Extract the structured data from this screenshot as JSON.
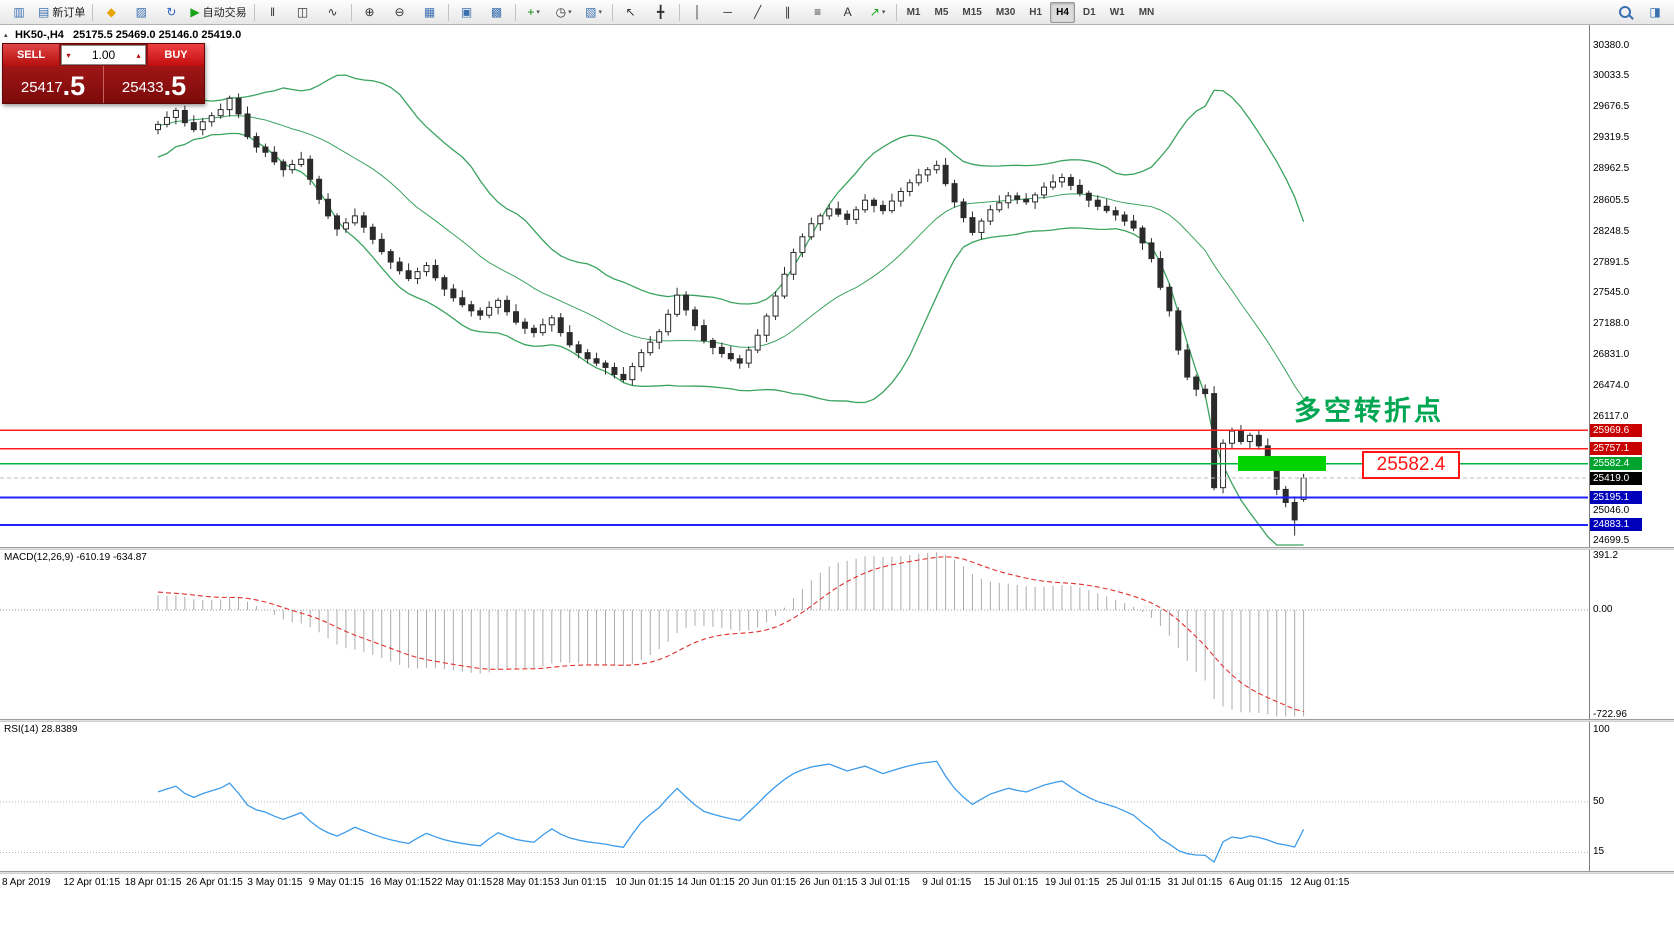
{
  "toolbar": {
    "groups": [
      {
        "items": [
          {
            "name": "symbol-window-button",
            "glyph": "▥",
            "color": "#3a6fb0"
          },
          {
            "name": "new-order-button",
            "glyph": "▤",
            "color": "#3a6fb0",
            "label": "新订单"
          }
        ]
      },
      {
        "items": [
          {
            "name": "favorites-button",
            "glyph": "◆",
            "color": "#e8a400"
          },
          {
            "name": "market-watch-button",
            "glyph": "▨",
            "color": "#3a6fb0"
          },
          {
            "name": "refresh-button",
            "glyph": "↻",
            "color": "#2a62c8"
          },
          {
            "name": "autotrade-button",
            "glyph": "▶",
            "color": "#17a317",
            "label": "自动交易"
          }
        ]
      },
      {
        "items": [
          {
            "name": "bar-chart-button",
            "glyph": "‖",
            "color": "#333333"
          },
          {
            "name": "candlestick-chart-button",
            "glyph": "◫",
            "color": "#333333"
          },
          {
            "name": "line-chart-button",
            "glyph": "∿",
            "color": "#333333"
          }
        ]
      },
      {
        "items": [
          {
            "name": "zoom-in-button",
            "glyph": "⊕",
            "color": "#333333"
          },
          {
            "name": "zoom-out-button",
            "glyph": "⊖",
            "color": "#333333"
          },
          {
            "name": "tile-windows-button",
            "glyph": "▦",
            "color": "#3a6fb0"
          }
        ]
      },
      {
        "items": [
          {
            "name": "arrange-windows-button",
            "glyph": "▣",
            "color": "#3a6fb0"
          },
          {
            "name": "cascade-windows-button",
            "glyph": "▩",
            "color": "#3a6fb0"
          }
        ]
      },
      {
        "items": [
          {
            "name": "indicators-button",
            "glyph": "+",
            "color": "#0a8a0a",
            "dropdown": true
          },
          {
            "name": "periods-button",
            "glyph": "◷",
            "color": "#333333",
            "dropdown": true
          },
          {
            "name": "templates-button",
            "glyph": "▧",
            "color": "#3a6fb0",
            "dropdown": true
          }
        ]
      },
      {
        "items": [
          {
            "name": "cursor-button",
            "glyph": "↖",
            "color": "#333333"
          },
          {
            "name": "crosshair-button",
            "glyph": "╋",
            "color": "#333333"
          }
        ]
      },
      {
        "items": [
          {
            "name": "vertical-line-button",
            "glyph": "│",
            "color": "#333333"
          },
          {
            "name": "horizontal-line-button",
            "glyph": "─",
            "color": "#333333"
          },
          {
            "name": "trendline-button",
            "glyph": "╱",
            "color": "#333333"
          },
          {
            "name": "equidistant-channel-button",
            "glyph": "∥",
            "color": "#333333"
          },
          {
            "name": "fibonacci-button",
            "glyph": "≡",
            "color": "#333333"
          },
          {
            "name": "text-label-button",
            "glyph": "A",
            "color": "#333333"
          },
          {
            "name": "arrows-button",
            "glyph": "↗",
            "color": "#17a317",
            "dropdown": true
          }
        ]
      }
    ],
    "timeframes": [
      {
        "label": "M1"
      },
      {
        "label": "M5"
      },
      {
        "label": "M15"
      },
      {
        "label": "M30"
      },
      {
        "label": "H1"
      },
      {
        "label": "H4",
        "active": true
      },
      {
        "label": "D1"
      },
      {
        "label": "W1"
      },
      {
        "label": "MN"
      }
    ],
    "right_items": [
      {
        "name": "search-button",
        "css": "magnifier"
      },
      {
        "name": "data-window-button",
        "glyph": "◨",
        "color": "#3a6fb0"
      }
    ]
  },
  "order_panel": {
    "sell_label": "SELL",
    "buy_label": "BUY",
    "volume": "1.00",
    "sell_price_main": "25417",
    "sell_price_pips": ".5",
    "buy_price_main": "25433",
    "buy_price_pips": ".5"
  },
  "chart_header": {
    "symbol": "HK50-,H4",
    "ohlc": "25175.5 25469.0 25146.0 25419.0"
  },
  "indicators": {
    "macd_header": "MACD(12,26,9) -610.19 -634.87",
    "rsi_header": "RSI(14) 28.8389"
  },
  "annotations": {
    "turning_point_text": "多空转折点",
    "price_callout_text": "25582.4"
  },
  "icons": {
    "collapse": "▴",
    "volume_down": "▾",
    "volume_up": "▴"
  },
  "colors": {
    "band": "#3aa35f",
    "bull_body": "#ffffff",
    "bear_body": "#2b2b2b",
    "candle_outline": "#2b2b2b",
    "macd_hist": "#ababab",
    "macd_signal": "#e03030",
    "rsi_line": "#3d9be9",
    "rect_fill": "#00d300",
    "annotation_green": "#00a651",
    "callout_red": "#ff1414",
    "bid_line": "#bbbbbb"
  },
  "chart_data": {
    "type": "candlestick",
    "symbol": "HK50-",
    "timeframe": "H4",
    "view_price_range": [
      24629,
      30621
    ],
    "y_ticks": [
      {
        "label": "30380.0",
        "value": 30380.0
      },
      {
        "label": "30033.5",
        "value": 30033.5
      },
      {
        "label": "29676.5",
        "value": 29676.5
      },
      {
        "label": "29319.5",
        "value": 29319.5
      },
      {
        "label": "28962.5",
        "value": 28962.5
      },
      {
        "label": "28605.5",
        "value": 28605.5
      },
      {
        "label": "28248.5",
        "value": 28248.5
      },
      {
        "label": "27891.5",
        "value": 27891.5
      },
      {
        "label": "27545.0",
        "value": 27545.0
      },
      {
        "label": "27188.0",
        "value": 27188.0
      },
      {
        "label": "26831.0",
        "value": 26831.0
      },
      {
        "label": "26474.0",
        "value": 26474.0
      },
      {
        "label": "26117.0",
        "value": 26117.0
      },
      {
        "label": "25046.0",
        "value": 25046.0
      },
      {
        "label": "24699.5",
        "value": 24699.5
      }
    ],
    "x_tick_labels": [
      "8 Apr 2019",
      "12 Apr 01:15",
      "18 Apr 01:15",
      "26 Apr 01:15",
      "3 May 01:15",
      "9 May 01:15",
      "16 May 01:15",
      "22 May 01:15",
      "28 May 01:15",
      "3 Jun 01:15",
      "10 Jun 01:15",
      "14 Jun 01:15",
      "20 Jun 01:15",
      "26 Jun 01:15",
      "3 Jul 01:15",
      "9 Jul 01:15",
      "15 Jul 01:15",
      "19 Jul 01:15",
      "25 Jul 01:15",
      "31 Jul 01:15",
      "6 Aug 01:15",
      "12 Aug 01:15"
    ],
    "prehistory_closes": [
      29050,
      29180,
      29080,
      29300,
      29180,
      29380,
      29320,
      29520,
      29400,
      29600,
      29480,
      29660,
      29560,
      29720,
      29600,
      29760,
      29650,
      29560,
      29470,
      29420
    ],
    "candles": [
      [
        29420,
        29520,
        29365,
        29480
      ],
      [
        29480,
        29630,
        29445,
        29560
      ],
      [
        29560,
        29670,
        29480,
        29640
      ],
      [
        29640,
        29695,
        29455,
        29500
      ],
      [
        29500,
        29585,
        29390,
        29420
      ],
      [
        29420,
        29555,
        29355,
        29510
      ],
      [
        29510,
        29620,
        29455,
        29580
      ],
      [
        29580,
        29720,
        29545,
        29650
      ],
      [
        29650,
        29810,
        29570,
        29780
      ],
      [
        29780,
        29835,
        29555,
        29600
      ],
      [
        29600,
        29685,
        29310,
        29340
      ],
      [
        29340,
        29385,
        29155,
        29220
      ],
      [
        29220,
        29260,
        29105,
        29160
      ],
      [
        29160,
        29230,
        29015,
        29050
      ],
      [
        29050,
        29080,
        28880,
        28960
      ],
      [
        28960,
        29075,
        28915,
        29020
      ],
      [
        29020,
        29165,
        28990,
        29080
      ],
      [
        29080,
        29125,
        28785,
        28850
      ],
      [
        28850,
        28890,
        28565,
        28620
      ],
      [
        28620,
        28690,
        28395,
        28430
      ],
      [
        28430,
        28460,
        28200,
        28280
      ],
      [
        28280,
        28405,
        28235,
        28350
      ],
      [
        28350,
        28515,
        28320,
        28430
      ],
      [
        28430,
        28475,
        28235,
        28300
      ],
      [
        28300,
        28340,
        28105,
        28160
      ],
      [
        28160,
        28230,
        27985,
        28020
      ],
      [
        28020,
        28050,
        27820,
        27900
      ],
      [
        27900,
        27955,
        27755,
        27800
      ],
      [
        27800,
        27885,
        27680,
        27710
      ],
      [
        27710,
        27835,
        27645,
        27790
      ],
      [
        27790,
        27900,
        27735,
        27860
      ],
      [
        27860,
        27930,
        27685,
        27720
      ],
      [
        27720,
        27750,
        27510,
        27590
      ],
      [
        27590,
        27645,
        27445,
        27490
      ],
      [
        27490,
        27575,
        27380,
        27410
      ],
      [
        27410,
        27455,
        27275,
        27340
      ],
      [
        27340,
        27380,
        27235,
        27290
      ],
      [
        27290,
        27450,
        27255,
        27380
      ],
      [
        27380,
        27490,
        27300,
        27460
      ],
      [
        27460,
        27515,
        27285,
        27330
      ],
      [
        27330,
        27415,
        27180,
        27210
      ],
      [
        27210,
        27255,
        27075,
        27140
      ],
      [
        27140,
        27180,
        27035,
        27090
      ],
      [
        27090,
        27250,
        27055,
        27180
      ],
      [
        27180,
        27290,
        27100,
        27260
      ],
      [
        27260,
        27315,
        27045,
        27090
      ],
      [
        27090,
        27175,
        26920,
        26950
      ],
      [
        26950,
        26995,
        26795,
        26860
      ],
      [
        26860,
        26900,
        26735,
        26790
      ],
      [
        26790,
        26860,
        26705,
        26740
      ],
      [
        26740,
        26770,
        26610,
        26690
      ],
      [
        26690,
        26745,
        26565,
        26610
      ],
      [
        26610,
        26695,
        26520,
        26550
      ],
      [
        26550,
        26745,
        26485,
        26700
      ],
      [
        26700,
        26900,
        26645,
        26860
      ],
      [
        26860,
        27050,
        26825,
        26980
      ],
      [
        26980,
        27130,
        26900,
        27100
      ],
      [
        27100,
        27355,
        27055,
        27300
      ],
      [
        27300,
        27605,
        27270,
        27520
      ],
      [
        27520,
        27565,
        27285,
        27350
      ],
      [
        27350,
        27390,
        27115,
        27170
      ],
      [
        27170,
        27240,
        26965,
        27000
      ],
      [
        27000,
        27030,
        26840,
        26920
      ],
      [
        26920,
        26975,
        26805,
        26850
      ],
      [
        26850,
        26935,
        26760,
        26790
      ],
      [
        26790,
        26835,
        26675,
        26740
      ],
      [
        26740,
        26930,
        26685,
        26890
      ],
      [
        26890,
        27130,
        26855,
        27060
      ],
      [
        27060,
        27310,
        26980,
        27280
      ],
      [
        27280,
        27565,
        27235,
        27510
      ],
      [
        27510,
        27845,
        27480,
        27760
      ],
      [
        27760,
        28055,
        27695,
        28010
      ],
      [
        28010,
        28230,
        27955,
        28190
      ],
      [
        28190,
        28410,
        28155,
        28340
      ],
      [
        28340,
        28460,
        28260,
        28430
      ],
      [
        28430,
        28565,
        28385,
        28510
      ],
      [
        28510,
        28595,
        28420,
        28450
      ],
      [
        28450,
        28495,
        28325,
        28390
      ],
      [
        28390,
        28540,
        28335,
        28500
      ],
      [
        28500,
        28680,
        28465,
        28610
      ],
      [
        28610,
        28640,
        28470,
        28550
      ],
      [
        28550,
        28605,
        28445,
        28490
      ],
      [
        28490,
        28685,
        28460,
        28600
      ],
      [
        28600,
        28755,
        28535,
        28710
      ],
      [
        28710,
        28850,
        28655,
        28810
      ],
      [
        28810,
        28970,
        28775,
        28900
      ],
      [
        28900,
        28990,
        28820,
        28960
      ],
      [
        28960,
        29065,
        28915,
        29010
      ],
      [
        29010,
        29095,
        28770,
        28800
      ],
      [
        28800,
        28845,
        28525,
        28590
      ],
      [
        28590,
        28630,
        28355,
        28410
      ],
      [
        28410,
        28480,
        28205,
        28240
      ],
      [
        28240,
        28400,
        28160,
        28370
      ],
      [
        28370,
        28555,
        28325,
        28500
      ],
      [
        28500,
        28665,
        28470,
        28580
      ],
      [
        28580,
        28705,
        28515,
        28660
      ],
      [
        28660,
        28700,
        28565,
        28620
      ],
      [
        28620,
        28690,
        28555,
        28590
      ],
      [
        28590,
        28700,
        28510,
        28670
      ],
      [
        28670,
        28815,
        28625,
        28760
      ],
      [
        28760,
        28905,
        28730,
        28820
      ],
      [
        28820,
        28915,
        28755,
        28870
      ],
      [
        28870,
        28910,
        28725,
        28780
      ],
      [
        28780,
        28850,
        28655,
        28690
      ],
      [
        28690,
        28720,
        28530,
        28610
      ],
      [
        28610,
        28665,
        28495,
        28540
      ],
      [
        28540,
        28625,
        28460,
        28490
      ],
      [
        28490,
        28535,
        28375,
        28440
      ],
      [
        28440,
        28480,
        28315,
        28370
      ],
      [
        28370,
        28440,
        28255,
        28290
      ],
      [
        28290,
        28320,
        28040,
        28120
      ],
      [
        28120,
        28175,
        27895,
        27940
      ],
      [
        27940,
        28025,
        27580,
        27610
      ],
      [
        27610,
        27655,
        27275,
        27340
      ],
      [
        27340,
        27380,
        26835,
        26890
      ],
      [
        26890,
        26960,
        26545,
        26580
      ],
      [
        26580,
        26610,
        26360,
        26440
      ],
      [
        26440,
        26495,
        26345,
        26390
      ],
      [
        26390,
        26475,
        25280,
        25310
      ],
      [
        25310,
        25865,
        25245,
        25820
      ],
      [
        25820,
        26000,
        25765,
        25960
      ],
      [
        25960,
        26030,
        25805,
        25840
      ],
      [
        25840,
        25940,
        25760,
        25910
      ],
      [
        25910,
        25965,
        25745,
        25790
      ],
      [
        25790,
        25875,
        25560,
        25590
      ],
      [
        25590,
        25635,
        25225,
        25290
      ],
      [
        25290,
        25330,
        25085,
        25140
      ],
      [
        25140,
        25210,
        24760,
        24940
      ],
      [
        25175.5,
        25469,
        25146,
        25419
      ]
    ],
    "bollinger": {
      "period": 20,
      "deviation": 2
    },
    "levels": [
      {
        "price": 25969.6,
        "label": "25969.6",
        "line_color": "#ff1e1e",
        "tag_color": "#c80000",
        "width": 1.5
      },
      {
        "price": 25757.1,
        "label": "25757.1",
        "line_color": "#ff1e1e",
        "tag_color": "#c80000",
        "width": 1.5
      },
      {
        "price": 25582.4,
        "label": "25582.4",
        "line_color": "#00b43c",
        "tag_color": "#00a32e",
        "width": 1.5
      },
      {
        "price": 25195.1,
        "label": "25195.1",
        "line_color": "#2222ff",
        "tag_color": "#0000bb",
        "width": 2
      },
      {
        "price": 24883.1,
        "label": "24883.1",
        "line_color": "#2222ff",
        "tag_color": "#0000bb",
        "width": 2
      }
    ],
    "current_price": {
      "value": 25419.0,
      "label": "25419.0",
      "tag_color": "#000000"
    },
    "rectangle": {
      "x": 1238,
      "width": 88,
      "price_top": 25674,
      "price_bottom": 25502
    },
    "ohlc_current_bar": {
      "open": 25175.5,
      "high": 25469.0,
      "low": 25146.0,
      "close": 25419.0
    },
    "macd": {
      "fast": 12,
      "slow": 26,
      "signal": 9,
      "value": -610.19,
      "signal_value": -634.87,
      "y_ticks": [
        {
          "label": "391.2",
          "value": 391.2
        },
        {
          "label": "0.00",
          "value": 0
        },
        {
          "label": "-722.96",
          "value": -722.96
        }
      ]
    },
    "rsi": {
      "period": 14,
      "value": 28.8389,
      "y_ticks": [
        {
          "label": "100",
          "value": 100
        },
        {
          "label": "50",
          "value": 50
        },
        {
          "label": "15",
          "value": 15
        }
      ],
      "level_lines": [
        50,
        15
      ]
    }
  }
}
